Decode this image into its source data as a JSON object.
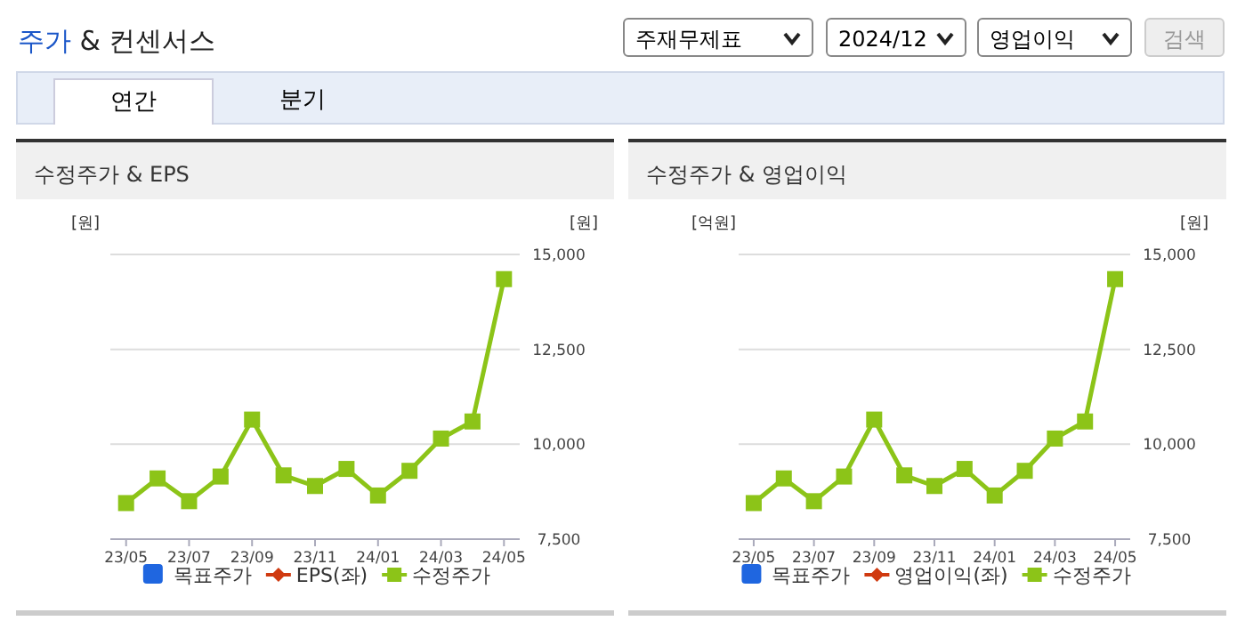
{
  "chart_data": [
    {
      "type": "other",
      "title": "주가 & 컨센서스",
      "annotations": [
        "주재무제표",
        "2024/12",
        "영업이익",
        "검색",
        "연간",
        "분기"
      ]
    },
    {
      "type": "line",
      "title": "수정주가 & EPS",
      "ylabel": "[원]",
      "y2label": "[원]",
      "categories": [
        "23/05",
        null,
        "23/07",
        null,
        "23/09",
        null,
        "23/11",
        null,
        "24/01",
        null,
        "24/03",
        null,
        "24/05"
      ],
      "y2lim": [
        7500,
        15000
      ],
      "y2ticks": [
        {
          "value": 7500,
          "label": "7,500"
        },
        {
          "value": 10000,
          "label": "10,000"
        },
        {
          "value": 12500,
          "label": "12,500"
        },
        {
          "value": 15000,
          "label": "15,000"
        }
      ],
      "grid": "y",
      "legend": "bottom",
      "series": [
        {
          "name": "목표주가",
          "type": "bar",
          "color": "#1f66e0",
          "values": [
            null,
            null,
            null,
            null,
            null,
            null,
            null,
            null,
            null,
            null,
            null,
            null,
            null
          ]
        },
        {
          "name": "EPS(좌)",
          "type": "line",
          "marker": "diamond",
          "color": "#d03a10",
          "values": [
            null,
            null,
            null,
            null,
            null,
            null,
            null,
            null,
            null,
            null,
            null,
            null,
            null
          ]
        },
        {
          "name": "수정주가",
          "type": "line",
          "marker": "square",
          "color": "#8cc418",
          "axis": "y2",
          "values": [
            8450,
            9100,
            8500,
            9150,
            10650,
            9180,
            8900,
            9350,
            8650,
            9300,
            10150,
            10600,
            14350
          ]
        }
      ]
    },
    {
      "type": "line",
      "title": "수정주가 & 영업이익",
      "ylabel": "[억원]",
      "y2label": "[원]",
      "categories": [
        "23/05",
        null,
        "23/07",
        null,
        "23/09",
        null,
        "23/11",
        null,
        "24/01",
        null,
        "24/03",
        null,
        "24/05"
      ],
      "y2lim": [
        7500,
        15000
      ],
      "y2ticks": [
        {
          "value": 7500,
          "label": "7,500"
        },
        {
          "value": 10000,
          "label": "10,000"
        },
        {
          "value": 12500,
          "label": "12,500"
        },
        {
          "value": 15000,
          "label": "15,000"
        }
      ],
      "grid": "y",
      "legend": "bottom",
      "series": [
        {
          "name": "목표주가",
          "type": "bar",
          "color": "#1f66e0",
          "values": [
            null,
            null,
            null,
            null,
            null,
            null,
            null,
            null,
            null,
            null,
            null,
            null,
            null
          ]
        },
        {
          "name": "영업이익(좌)",
          "type": "line",
          "marker": "diamond",
          "color": "#d03a10",
          "values": [
            null,
            null,
            null,
            null,
            null,
            null,
            null,
            null,
            null,
            null,
            null,
            null,
            null
          ]
        },
        {
          "name": "수정주가",
          "type": "line",
          "marker": "square",
          "color": "#8cc418",
          "axis": "y2",
          "values": [
            8450,
            9100,
            8500,
            9150,
            10650,
            9180,
            8900,
            9350,
            8650,
            9300,
            10150,
            10600,
            14350
          ]
        }
      ]
    }
  ]
}
